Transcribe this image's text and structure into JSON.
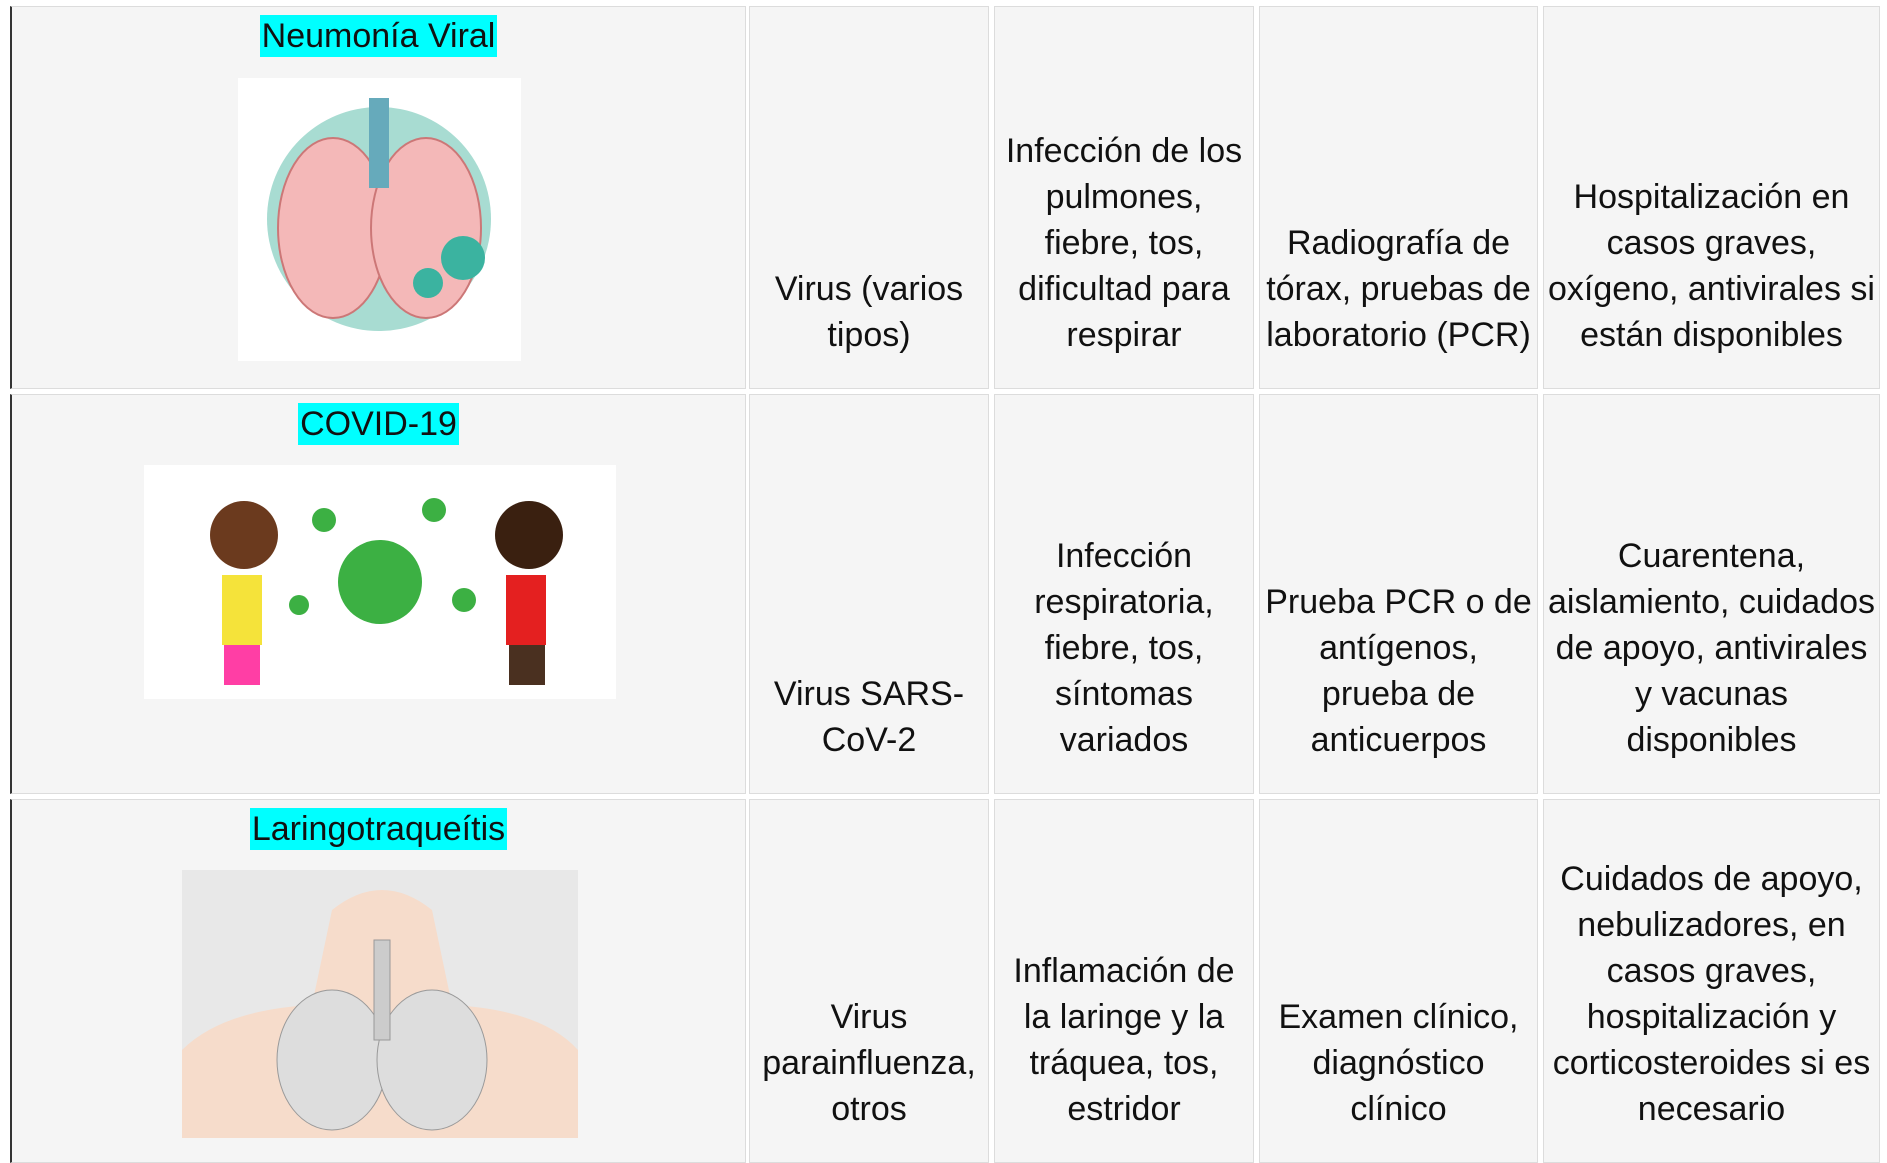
{
  "table": {
    "rows": [
      {
        "title": "Neumonía Viral",
        "cells": [
          "Virus (varios tipos)",
          "Infección de los pulmones, fiebre, tos, dificultad para respirar",
          "Radiografía de tórax, pruebas de laboratorio (PCR)",
          "Hospitalización en casos graves, oxígeno, antivirales si están disponibles"
        ]
      },
      {
        "title": "COVID-19",
        "cells": [
          "Virus SARS-CoV-2",
          "Infección respiratoria, fiebre, tos, síntomas variados",
          "Prueba PCR o de antígenos, prueba de anticuerpos",
          "Cuarentena, aislamiento, cuidados de apoyo, antivirales y vacunas disponibles"
        ]
      },
      {
        "title": "Laringotraqueítis",
        "cells": [
          "Virus parainfluenza, otros",
          "Inflamación de la laringe y la tráquea, tos, estridor",
          "Examen clínico, diagnóstico clínico",
          "Cuidados de apoyo, nebulizadores, en casos graves, hospitalización y corticosteroides si es necesario"
        ]
      }
    ]
  }
}
